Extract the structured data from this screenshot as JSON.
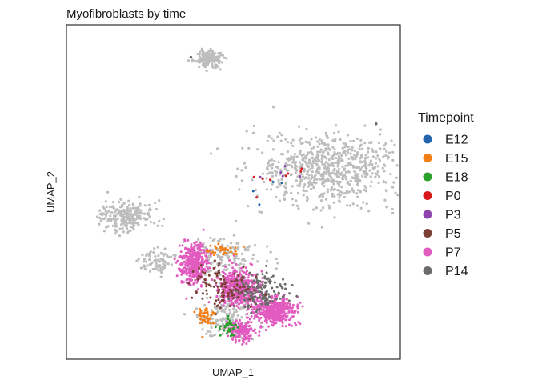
{
  "chart_data": {
    "type": "scatter",
    "title": "Myofibroblasts by time",
    "xlabel": "UMAP_1",
    "ylabel": "UMAP_2",
    "background_color": "#bdbdbd",
    "axes": {
      "ticks": false,
      "grid": false,
      "frame": true
    },
    "legend": {
      "title": "Timepoint",
      "placement": "right",
      "entries": [
        {
          "label": "E12",
          "color": "#2166ac"
        },
        {
          "label": "E15",
          "color": "#f57f17"
        },
        {
          "label": "E18",
          "color": "#2ca02c"
        },
        {
          "label": "P0",
          "color": "#d7191c"
        },
        {
          "label": "P3",
          "color": "#8e44ad"
        },
        {
          "label": "P5",
          "color": "#7b3f35"
        },
        {
          "label": "P7",
          "color": "#e25bbf"
        },
        {
          "label": "P14",
          "color": "#6b6b6b"
        }
      ]
    },
    "clusters": {
      "background": [
        {
          "center": [
            -1.6,
            8.8
          ],
          "spread": [
            0.9,
            0.45
          ],
          "n": 160
        },
        {
          "center": [
            6.2,
            2.3
          ],
          "spread": [
            4.2,
            1.9
          ],
          "n": 700
        },
        {
          "center": [
            -7.1,
            -0.4
          ],
          "spread": [
            1.6,
            0.8
          ],
          "n": 220
        },
        {
          "center": [
            -5.1,
            -3.1
          ],
          "spread": [
            0.9,
            0.6
          ],
          "n": 70
        },
        {
          "center": [
            -0.6,
            -6.3
          ],
          "spread": [
            1.8,
            1.2
          ],
          "n": 150
        },
        {
          "center": [
            -1.0,
            -2.8
          ],
          "spread": [
            2.4,
            1.0
          ],
          "n": 160
        }
      ],
      "P7": [
        {
          "center": [
            -2.6,
            -3.2
          ],
          "spread": [
            0.9,
            1.2
          ],
          "n": 380
        },
        {
          "center": [
            0.4,
            -4.6
          ],
          "spread": [
            1.3,
            1.0
          ],
          "n": 520
        },
        {
          "center": [
            2.6,
            -6.0
          ],
          "spread": [
            1.3,
            0.8
          ],
          "n": 420
        },
        {
          "center": [
            0.6,
            -7.2
          ],
          "spread": [
            0.9,
            0.6
          ],
          "n": 170
        }
      ],
      "P14": [
        {
          "center": [
            1.8,
            -4.8
          ],
          "spread": [
            1.7,
            1.1
          ],
          "n": 160
        }
      ],
      "P5": [
        {
          "center": [
            -0.8,
            -4.5
          ],
          "spread": [
            2.0,
            1.3
          ],
          "n": 110
        }
      ],
      "E15": [
        {
          "center": [
            -1.9,
            -6.3
          ],
          "spread": [
            0.5,
            0.5
          ],
          "n": 50
        },
        {
          "center": [
            -0.6,
            -2.4
          ],
          "spread": [
            1.0,
            0.3
          ],
          "n": 35
        }
      ],
      "E18": [
        {
          "center": [
            -0.3,
            -6.9
          ],
          "spread": [
            0.6,
            0.5
          ],
          "n": 35
        }
      ],
      "P0": [
        {
          "center": [
            2.5,
            1.5
          ],
          "spread": [
            2.0,
            0.8
          ],
          "n": 8
        }
      ],
      "P3": [
        {
          "center": [
            3.0,
            1.8
          ],
          "spread": [
            2.0,
            0.8
          ],
          "n": 6
        }
      ],
      "E12": [
        {
          "center": [
            3.0,
            1.0
          ],
          "spread": [
            2.0,
            0.8
          ],
          "n": 4
        }
      ]
    },
    "outlier_points": [
      {
        "x": 9.4,
        "y": 5.0,
        "group": "P14"
      },
      {
        "x": -2.8,
        "y": 8.9,
        "group": "P14"
      }
    ]
  }
}
